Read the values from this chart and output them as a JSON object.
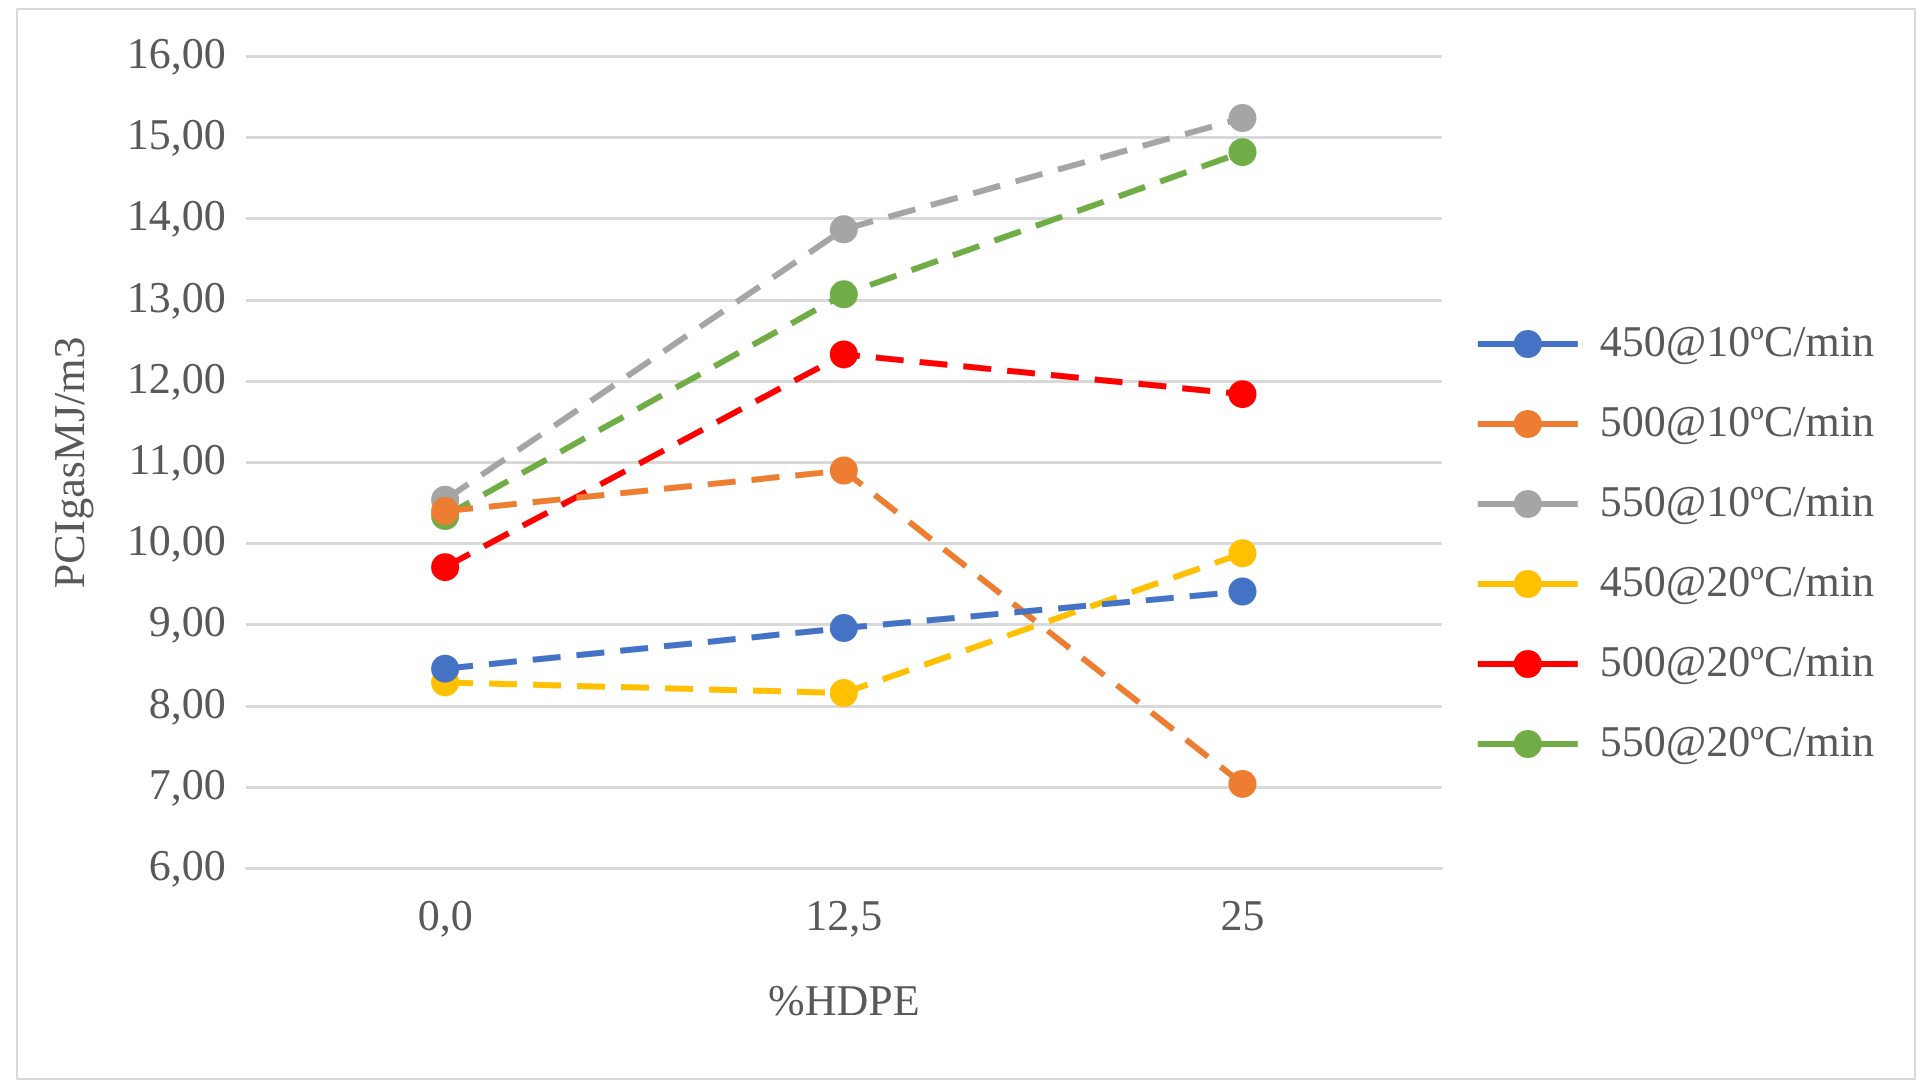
{
  "chart_data": {
    "type": "line",
    "xlabel": "%HDPE",
    "ylabel": "PCIgasMJ/m3",
    "categories": [
      "0,0",
      "12,5",
      "25"
    ],
    "series": [
      {
        "name": "450@10ºC/min",
        "color": "#4472c4",
        "values": [
          8.46,
          8.96,
          9.41
        ]
      },
      {
        "name": "500@10ºC/min",
        "color": "#ed7d31",
        "values": [
          10.4,
          10.9,
          7.04
        ]
      },
      {
        "name": "550@10ºC/min",
        "color": "#a5a5a5",
        "values": [
          10.54,
          13.87,
          15.24
        ]
      },
      {
        "name": "450@20ºC/min",
        "color": "#ffc000",
        "values": [
          8.29,
          8.16,
          9.88
        ]
      },
      {
        "name": "500@20ºC/min",
        "color": "#ff0000",
        "values": [
          9.71,
          12.33,
          11.84
        ]
      },
      {
        "name": "550@20ºC/min",
        "color": "#70ad47",
        "values": [
          10.34,
          13.07,
          14.82
        ]
      }
    ],
    "ylim": [
      6,
      16
    ],
    "yticks": [
      {
        "value": 6,
        "label": "6,00"
      },
      {
        "value": 7,
        "label": "7,00"
      },
      {
        "value": 8,
        "label": "8,00"
      },
      {
        "value": 9,
        "label": "9,00"
      },
      {
        "value": 10,
        "label": "10,00"
      },
      {
        "value": 11,
        "label": "11,00"
      },
      {
        "value": 12,
        "label": "12,00"
      },
      {
        "value": 13,
        "label": "13,00"
      },
      {
        "value": 14,
        "label": "14,00"
      },
      {
        "value": 15,
        "label": "15,00"
      },
      {
        "value": 16,
        "label": "16,00"
      }
    ],
    "grid": "y",
    "legend": "right",
    "marker": "circle",
    "line_style": "dashed"
  }
}
